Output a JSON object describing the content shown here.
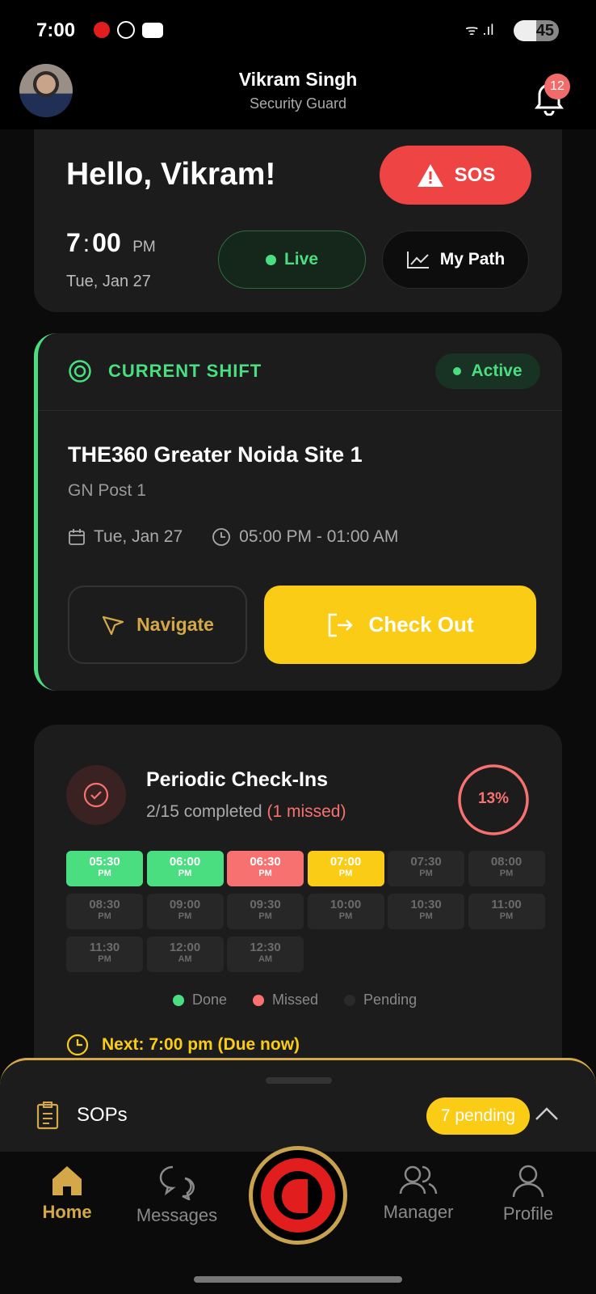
{
  "status_bar": {
    "time": "7:00",
    "battery": "45"
  },
  "header": {
    "name": "Vikram Singh",
    "role": "Security Guard",
    "notification_count": "12"
  },
  "greeting": {
    "text": "Hello, Vikram!",
    "sos_label": "SOS",
    "time_hour": "7",
    "time_sep": ":",
    "time_min": "00",
    "ampm": "PM",
    "date": "Tue, Jan 27",
    "live_label": "Live",
    "mypath_label": "My Path"
  },
  "shift": {
    "section_label": "CURRENT SHIFT",
    "status": "Active",
    "site": "THE360 Greater Noida Site 1",
    "post": "GN Post 1",
    "date": "Tue, Jan 27",
    "hours": "05:00 PM - 01:00 AM",
    "navigate_label": "Navigate",
    "checkout_label": "Check Out",
    "accent": "#4ade80"
  },
  "checkins": {
    "title": "Periodic Check-Ins",
    "completed": "2/15 completed",
    "missed": "(1 missed)",
    "percent": "13%",
    "progress": 13,
    "slots": [
      {
        "time": "05:30",
        "ampm": "PM",
        "status": "done"
      },
      {
        "time": "06:00",
        "ampm": "PM",
        "status": "done"
      },
      {
        "time": "06:30",
        "ampm": "PM",
        "status": "missed"
      },
      {
        "time": "07:00",
        "ampm": "PM",
        "status": "current"
      },
      {
        "time": "07:30",
        "ampm": "PM",
        "status": "pending"
      },
      {
        "time": "08:00",
        "ampm": "PM",
        "status": "pending"
      },
      {
        "time": "08:30",
        "ampm": "PM",
        "status": "pending"
      },
      {
        "time": "09:00",
        "ampm": "PM",
        "status": "pending"
      },
      {
        "time": "09:30",
        "ampm": "PM",
        "status": "pending"
      },
      {
        "time": "10:00",
        "ampm": "PM",
        "status": "pending"
      },
      {
        "time": "10:30",
        "ampm": "PM",
        "status": "pending"
      },
      {
        "time": "11:00",
        "ampm": "PM",
        "status": "pending"
      },
      {
        "time": "11:30",
        "ampm": "PM",
        "status": "pending"
      },
      {
        "time": "12:00",
        "ampm": "AM",
        "status": "pending"
      },
      {
        "time": "12:30",
        "ampm": "AM",
        "status": "pending"
      }
    ],
    "legend": [
      "Done",
      "Missed",
      "Pending"
    ],
    "next": "Next: 7:00 pm (Due now)"
  },
  "sops": {
    "label": "SOPs",
    "pending": "7 pending"
  },
  "nav": {
    "items": [
      {
        "label": "Home",
        "icon": "home-icon"
      },
      {
        "label": "Messages",
        "icon": "messages-icon"
      },
      {
        "label": "Manager",
        "icon": "manager-icon"
      },
      {
        "label": "Profile",
        "icon": "profile-icon"
      }
    ]
  },
  "colors": {
    "done": "#4ade80",
    "missed": "#f87171",
    "current": "#facc15",
    "pending": "#272727",
    "gold": "#d4a849",
    "sos": "#ef4444"
  }
}
